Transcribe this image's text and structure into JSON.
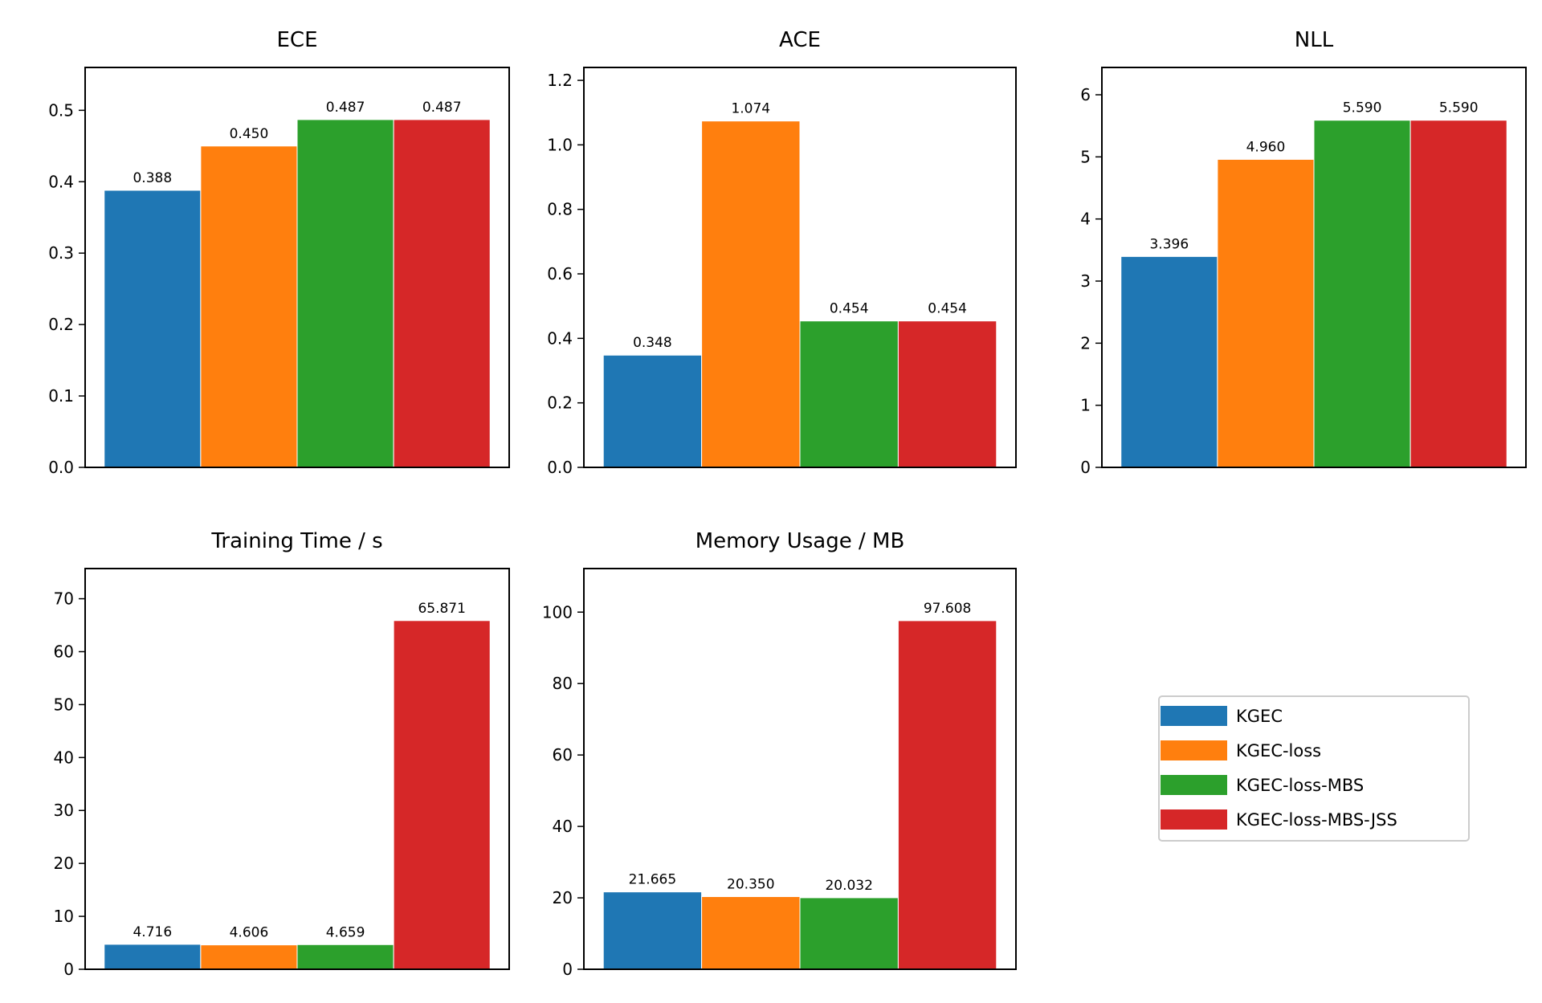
{
  "chart_data": [
    {
      "type": "bar",
      "title": "ECE",
      "series": [
        {
          "name": "KGEC",
          "values": [
            0.388
          ],
          "labels": [
            "0.388"
          ]
        },
        {
          "name": "KGEC-loss",
          "values": [
            0.45
          ],
          "labels": [
            "0.450"
          ]
        },
        {
          "name": "KGEC-loss-MBS",
          "values": [
            0.487
          ],
          "labels": [
            "0.487"
          ]
        },
        {
          "name": "KGEC-loss-MBS-JSS",
          "values": [
            0.487
          ],
          "labels": [
            "0.487"
          ]
        }
      ],
      "ylim": [
        0,
        0.56
      ],
      "yticks": [
        "0.0",
        "0.1",
        "0.2",
        "0.3",
        "0.4",
        "0.5"
      ],
      "ytick_values": [
        0,
        0.1,
        0.2,
        0.3,
        0.4,
        0.5
      ]
    },
    {
      "type": "bar",
      "title": "ACE",
      "series": [
        {
          "name": "KGEC",
          "values": [
            0.348
          ],
          "labels": [
            "0.348"
          ]
        },
        {
          "name": "KGEC-loss",
          "values": [
            1.074
          ],
          "labels": [
            "1.074"
          ]
        },
        {
          "name": "KGEC-loss-MBS",
          "values": [
            0.454
          ],
          "labels": [
            "0.454"
          ]
        },
        {
          "name": "KGEC-loss-MBS-JSS",
          "values": [
            0.454
          ],
          "labels": [
            "0.454"
          ]
        }
      ],
      "ylim": [
        0,
        1.24
      ],
      "yticks": [
        "0.0",
        "0.2",
        "0.4",
        "0.6",
        "0.8",
        "1.0",
        "1.2"
      ],
      "ytick_values": [
        0,
        0.2,
        0.4,
        0.6,
        0.8,
        1.0,
        1.2
      ]
    },
    {
      "type": "bar",
      "title": "NLL",
      "series": [
        {
          "name": "KGEC",
          "values": [
            3.396
          ],
          "labels": [
            "3.396"
          ]
        },
        {
          "name": "KGEC-loss",
          "values": [
            4.96
          ],
          "labels": [
            "4.960"
          ]
        },
        {
          "name": "KGEC-loss-MBS",
          "values": [
            5.59
          ],
          "labels": [
            "5.590"
          ]
        },
        {
          "name": "KGEC-loss-MBS-JSS",
          "values": [
            5.59
          ],
          "labels": [
            "5.590"
          ]
        }
      ],
      "ylim": [
        0,
        6.44
      ],
      "yticks": [
        "0",
        "1",
        "2",
        "3",
        "4",
        "5",
        "6"
      ],
      "ytick_values": [
        0,
        1,
        2,
        3,
        4,
        5,
        6
      ]
    },
    {
      "type": "bar",
      "title": "Training Time / s",
      "series": [
        {
          "name": "KGEC",
          "values": [
            4.716
          ],
          "labels": [
            "4.716"
          ]
        },
        {
          "name": "KGEC-loss",
          "values": [
            4.606
          ],
          "labels": [
            "4.606"
          ]
        },
        {
          "name": "KGEC-loss-MBS",
          "values": [
            4.659
          ],
          "labels": [
            "4.659"
          ]
        },
        {
          "name": "KGEC-loss-MBS-JSS",
          "values": [
            65.871
          ],
          "labels": [
            "65.871"
          ]
        }
      ],
      "ylim": [
        0,
        75.7
      ],
      "yticks": [
        "0",
        "10",
        "20",
        "30",
        "40",
        "50",
        "60",
        "70"
      ],
      "ytick_values": [
        0,
        10,
        20,
        30,
        40,
        50,
        60,
        70
      ]
    },
    {
      "type": "bar",
      "title": "Memory Usage / MB",
      "series": [
        {
          "name": "KGEC",
          "values": [
            21.665
          ],
          "labels": [
            "21.665"
          ]
        },
        {
          "name": "KGEC-loss",
          "values": [
            20.35
          ],
          "labels": [
            "20.350"
          ]
        },
        {
          "name": "KGEC-loss-MBS",
          "values": [
            20.032
          ],
          "labels": [
            "20.032"
          ]
        },
        {
          "name": "KGEC-loss-MBS-JSS",
          "values": [
            97.608
          ],
          "labels": [
            "97.608"
          ]
        }
      ],
      "ylim": [
        0,
        112.2
      ],
      "yticks": [
        "0",
        "20",
        "40",
        "60",
        "80",
        "100"
      ],
      "ytick_values": [
        0,
        20,
        40,
        60,
        80,
        100
      ]
    }
  ],
  "legend": {
    "position": "lower-right panel, centered",
    "entries": [
      {
        "label": "KGEC",
        "color": "#1f77b4"
      },
      {
        "label": "KGEC-loss",
        "color": "#ff7f0e"
      },
      {
        "label": "KGEC-loss-MBS",
        "color": "#2ca02c"
      },
      {
        "label": "KGEC-loss-MBS-JSS",
        "color": "#d62728"
      }
    ]
  },
  "colors": [
    "#1f77b4",
    "#ff7f0e",
    "#2ca02c",
    "#d62728"
  ],
  "grid": false
}
